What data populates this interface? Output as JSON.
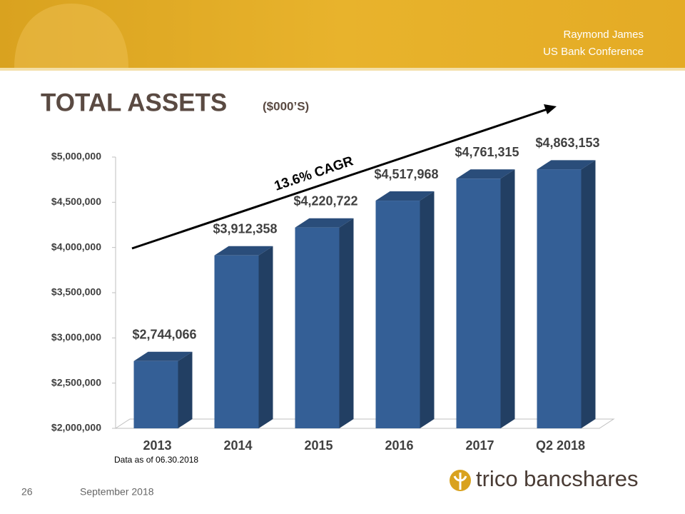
{
  "header": {
    "lines": [
      "Raymond James",
      "US Bank Conference"
    ]
  },
  "footer": {
    "page": "26",
    "date": "September 2018",
    "logo": "trico bancshares"
  },
  "chart_data": {
    "type": "bar",
    "title": "TOTAL ASSETS",
    "subtitle": "($000’S)",
    "categories": [
      "2013",
      "2014",
      "2015",
      "2016",
      "2017",
      "Q2 2018"
    ],
    "values": [
      2744066,
      3912358,
      4220722,
      4517968,
      4761315,
      4863153
    ],
    "value_labels": [
      "$2,744,066",
      "$3,912,358",
      "$4,220,722",
      "$4,517,968",
      "$4,761,315",
      "$4,863,153"
    ],
    "color": "#345f96",
    "ylim": [
      2000000,
      5000000
    ],
    "yticks": [
      {
        "value": 2000000,
        "label": "$2,000,000"
      },
      {
        "value": 2500000,
        "label": "$2,500,000"
      },
      {
        "value": 3000000,
        "label": "$3,000,000"
      },
      {
        "value": 3500000,
        "label": "$3,500,000"
      },
      {
        "value": 4000000,
        "label": "$4,000,000"
      },
      {
        "value": 4500000,
        "label": "$4,500,000"
      },
      {
        "value": 5000000,
        "label": "$5,000,000"
      }
    ],
    "grid": false,
    "annotation": "13.6% CAGR",
    "note": "Data as of 06.30.2018"
  }
}
